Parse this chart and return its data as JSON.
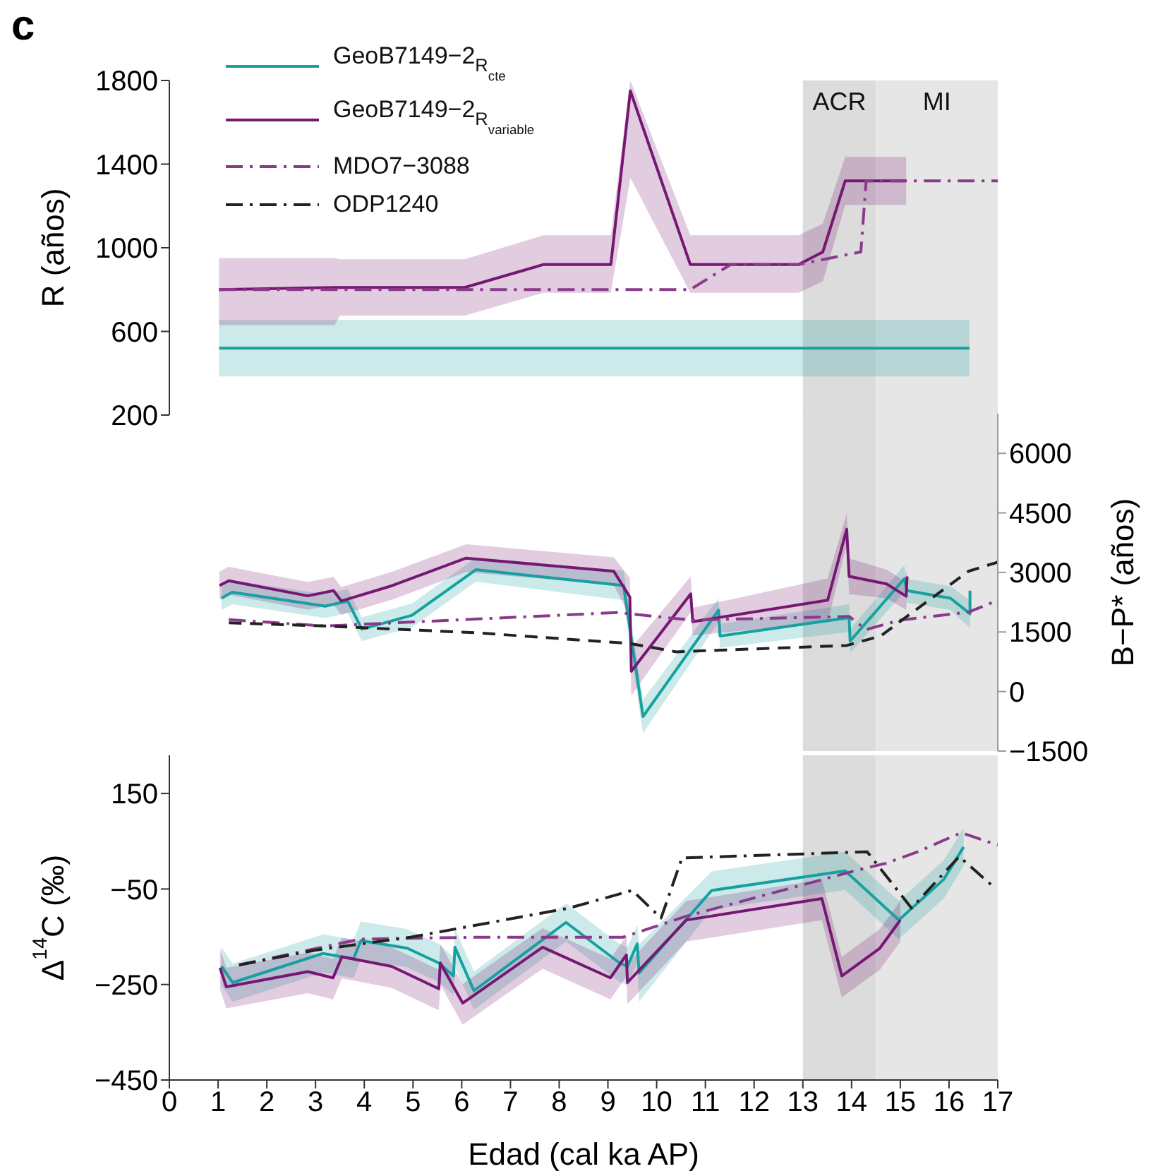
{
  "chart_data": [
    {
      "type": "line",
      "annotations": [
        "c"
      ],
      "ylabel": "R (años)",
      "xlim": [
        0,
        17
      ],
      "xticks": [
        0,
        1,
        2,
        3,
        4,
        5,
        6,
        7,
        8,
        9,
        10,
        11,
        12,
        13,
        14,
        15,
        16,
        17
      ],
      "ylim": [
        200,
        1800
      ],
      "yticks": [
        200,
        600,
        1000,
        1400,
        1800
      ],
      "tick_labels": "y",
      "legend": "top left",
      "bands": [
        {
          "axis": "x",
          "from": 13,
          "to": 14.5,
          "label": "ACR",
          "color": "#dcdcdc"
        },
        {
          "axis": "x",
          "from": 14.5,
          "to": 17,
          "label": "MI",
          "color": "#e6e6e6"
        }
      ],
      "series": [
        {
          "name": "GeoB7149−2$_{R}$$_{cte}$",
          "color": "#17a0a0",
          "line_style": "solid",
          "x": [
            1.02,
            16.42
          ],
          "values": [
            520,
            520
          ],
          "lower": [
            385,
            385
          ],
          "upper": [
            655,
            655
          ]
        },
        {
          "name": "GeoB7149−2$_{R}$$_{variable}$",
          "color": "#761873",
          "line_style": "solid",
          "x": [
            1.02,
            3.39,
            3.5,
            6.06,
            7.68,
            9.06,
            9.46,
            10.69,
            12.91,
            13.41,
            13.87,
            15.12
          ],
          "values": [
            800,
            810,
            810,
            810,
            920,
            920,
            1750,
            920,
            920,
            980,
            1320,
            1320
          ],
          "lower": [
            630,
            630,
            675,
            675,
            785,
            785,
            1335,
            785,
            785,
            840,
            1205,
            1205
          ],
          "upper": [
            950,
            950,
            945,
            945,
            1060,
            1060,
            1800,
            1060,
            1060,
            1115,
            1435,
            1435
          ]
        },
        {
          "name": "MDO7−3088",
          "color": "#8a3a8a",
          "line_style": "dashdot",
          "x": [
            1.02,
            6.06,
            10.69,
            11.52,
            12.91,
            14.19,
            14.3,
            17
          ],
          "values": [
            800,
            800,
            800,
            920,
            920,
            980,
            1320,
            1320
          ]
        }
      ]
    },
    {
      "type": "line",
      "ylabel": "B−P* (años)",
      "xlim": [
        0,
        17
      ],
      "xticks": [
        0,
        1,
        2,
        3,
        4,
        5,
        6,
        7,
        8,
        9,
        10,
        11,
        12,
        13,
        14,
        15,
        16,
        17
      ],
      "ylim": [
        -1500,
        7000
      ],
      "yticks": [
        {
          "value": -1500,
          "label": "−1500"
        },
        0,
        1500,
        3000,
        4500,
        6000
      ],
      "tick_labels": "y",
      "bands": [
        {
          "axis": "x",
          "from": 13,
          "to": 14.5,
          "color": "#dcdcdc"
        },
        {
          "axis": "x",
          "from": 14.5,
          "to": 17,
          "color": "#e6e6e6"
        }
      ],
      "series": [
        {
          "color": "#17a0a0",
          "line_style": "solid",
          "x": [
            1.07,
            1.29,
            3.2,
            3.66,
            3.95,
            4.98,
            6.29,
            9.32,
            9.72,
            11.27,
            11.3,
            13.95,
            13.97,
            15.08,
            15.14,
            16.03,
            16.43,
            16.43
          ],
          "values": [
            2350,
            2500,
            2150,
            2280,
            1570,
            1920,
            3070,
            2670,
            -630,
            2050,
            1400,
            1860,
            1270,
            2840,
            2540,
            2350,
            1960,
            2540
          ],
          "lower": [
            2050,
            2200,
            1850,
            1980,
            1270,
            1620,
            2770,
            2300,
            -1050,
            1750,
            1100,
            1500,
            970,
            2500,
            2240,
            2050,
            1600,
            2200
          ],
          "upper": [
            2650,
            2800,
            2450,
            2580,
            1870,
            2220,
            3370,
            3050,
            -200,
            2350,
            1700,
            2200,
            1570,
            3180,
            2840,
            2650,
            2300,
            2880
          ]
        },
        {
          "color": "#761873",
          "line_style": "solid",
          "x": [
            1.03,
            1.22,
            2.84,
            3.37,
            3.53,
            4.58,
            6.09,
            9.12,
            9.45,
            9.48,
            10.7,
            10.74,
            13.51,
            13.9,
            13.95,
            14.72,
            15.12,
            15.14
          ],
          "values": [
            2670,
            2790,
            2410,
            2540,
            2280,
            2670,
            3360,
            3030,
            2380,
            510,
            2460,
            1760,
            2300,
            4090,
            2900,
            2710,
            2400,
            2900
          ],
          "lower": [
            2320,
            2440,
            2060,
            2190,
            1930,
            2320,
            3010,
            2680,
            1900,
            -100,
            2000,
            1410,
            1750,
            3700,
            2450,
            2350,
            2050,
            2550
          ],
          "upper": [
            3020,
            3140,
            2760,
            2890,
            2630,
            3020,
            3710,
            3380,
            2860,
            1100,
            2900,
            2110,
            2850,
            4480,
            3350,
            3070,
            2750,
            3250
          ]
        },
        {
          "color": "#8a3a8a",
          "line_style": "dashdot",
          "x": [
            1.22,
            3.2,
            9.2,
            10.7,
            13.95,
            14.3,
            15.0,
            16.4,
            17.0
          ],
          "values": [
            1810,
            1650,
            1990,
            1800,
            1890,
            1560,
            1800,
            2000,
            2300
          ]
        },
        {
          "color": "#222222",
          "line_style": "dashed",
          "x": [
            1.22,
            3.2,
            6.3,
            9.45,
            10.4,
            13.9,
            14.6,
            15.1,
            16.4,
            17.0
          ],
          "values": [
            1730,
            1650,
            1480,
            1210,
            1000,
            1160,
            1400,
            1860,
            3030,
            3260
          ]
        }
      ]
    },
    {
      "type": "line",
      "ylabel": "Δ$^{14}$C (‰)",
      "xlabel": "Edad (cal ka AP)",
      "xlim": [
        0,
        17
      ],
      "xticks": [
        0,
        1,
        2,
        3,
        4,
        5,
        6,
        7,
        8,
        9,
        10,
        11,
        12,
        13,
        14,
        15,
        16,
        17
      ],
      "ylim": [
        -450,
        230
      ],
      "yticks": [
        {
          "value": -450,
          "label": "−450"
        },
        {
          "value": -250,
          "label": "−250"
        },
        {
          "value": -50,
          "label": "−50"
        },
        150
      ],
      "bands": [
        {
          "axis": "x",
          "from": 13,
          "to": 14.5,
          "color": "#dcdcdc"
        },
        {
          "axis": "x",
          "from": 14.5,
          "to": 17,
          "color": "#e6e6e6"
        }
      ],
      "series": [
        {
          "color": "#17a0a0",
          "line_style": "solid",
          "x": [
            1.07,
            1.3,
            3.15,
            3.78,
            3.93,
            4.88,
            5.53,
            5.83,
            5.86,
            6.25,
            8.14,
            9.24,
            9.4,
            9.6,
            9.64,
            11.13,
            13.87,
            14.97,
            15.89,
            16.3
          ],
          "values": [
            -212,
            -246,
            -185,
            -196,
            -158,
            -174,
            -205,
            -232,
            -172,
            -263,
            -120,
            -205,
            -212,
            -165,
            -226,
            -53,
            -12,
            -115,
            -30,
            38
          ],
          "lower": [
            -252,
            -286,
            -225,
            -236,
            -198,
            -214,
            -245,
            -272,
            -212,
            -303,
            -160,
            -245,
            -252,
            -205,
            -286,
            -93,
            -52,
            -155,
            -70,
            -2
          ],
          "upper": [
            -172,
            -206,
            -145,
            -156,
            -118,
            -134,
            -165,
            -192,
            -132,
            -223,
            -80,
            -165,
            -172,
            -125,
            -166,
            -13,
            28,
            -75,
            10,
            78
          ]
        },
        {
          "color": "#761873",
          "line_style": "solid",
          "x": [
            1.04,
            1.17,
            2.84,
            3.36,
            3.54,
            4.56,
            5.53,
            5.56,
            6.02,
            7.66,
            9.05,
            9.38,
            9.4,
            10.61,
            13.39,
            13.8,
            14.58,
            15.0
          ],
          "values": [
            -215,
            -255,
            -223,
            -236,
            -192,
            -212,
            -259,
            -205,
            -289,
            -172,
            -236,
            -188,
            -246,
            -115,
            -70,
            -232,
            -174,
            -115
          ],
          "lower": [
            -260,
            -300,
            -268,
            -281,
            -237,
            -257,
            -304,
            -250,
            -334,
            -217,
            -281,
            -233,
            -291,
            -160,
            -115,
            -277,
            -219,
            -160
          ],
          "upper": [
            -175,
            -215,
            -183,
            -196,
            -152,
            -172,
            -219,
            -165,
            -249,
            -132,
            -196,
            -148,
            -206,
            -75,
            -30,
            -192,
            -134,
            -75
          ]
        },
        {
          "color": "#8a3a8a",
          "line_style": "dashdot",
          "x": [
            1.43,
            3.91,
            6.25,
            9.31,
            10.61,
            14.06,
            14.71,
            15.36,
            16.25,
            17.0
          ],
          "values": [
            -209,
            -155,
            -151,
            -151,
            -107,
            -12,
            4,
            28,
            68,
            42
          ]
        },
        {
          "name": "ODP1240",
          "color": "#222222",
          "line_style": "dashdot",
          "x": [
            1.43,
            3.0,
            4.95,
            8.2,
            9.5,
            10.09,
            10.52,
            14.32,
            15.23,
            16.21,
            16.93
          ],
          "values": [
            -209,
            -178,
            -151,
            -90,
            -53,
            -111,
            15,
            28,
            -90,
            18,
            -47
          ]
        }
      ]
    }
  ]
}
